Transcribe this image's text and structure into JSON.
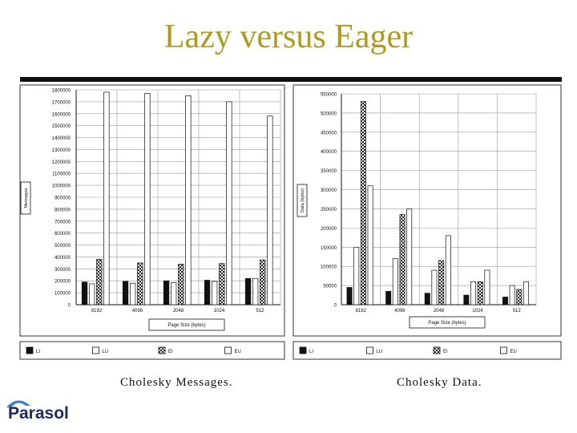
{
  "slide": {
    "title": "Lazy versus Eager",
    "caption_left": "Cholesky Messages.",
    "caption_right": "Cholesky Data.",
    "logo_text": "Parasol"
  },
  "colors": {
    "title": "#b09a1a",
    "LI": "#111111",
    "LU": "#ffffff",
    "EI": "#444444",
    "EU": "#ffffff",
    "logo": "#1e2a60"
  },
  "chart_data": [
    {
      "type": "bar",
      "xlabel": "Page Size (bytes)",
      "ylabel": "Messages",
      "categories": [
        "8192",
        "4096",
        "2048",
        "1024",
        "512"
      ],
      "ylim": [
        0,
        1800000
      ],
      "yticks": [
        0,
        100000,
        200000,
        300000,
        400000,
        500000,
        600000,
        700000,
        800000,
        900000,
        1000000,
        1100000,
        1200000,
        1300000,
        1400000,
        1500000,
        1600000,
        1700000,
        1800000
      ],
      "grid": true,
      "legend": "bottom",
      "series": [
        {
          "name": "LI",
          "values": [
            190000,
            195000,
            200000,
            205000,
            220000
          ]
        },
        {
          "name": "LU",
          "values": [
            175000,
            180000,
            185000,
            195000,
            220000
          ]
        },
        {
          "name": "EI",
          "values": [
            380000,
            350000,
            340000,
            345000,
            375000
          ]
        },
        {
          "name": "EU",
          "values": [
            1780000,
            1770000,
            1750000,
            1700000,
            1580000
          ]
        }
      ]
    },
    {
      "type": "bar",
      "xlabel": "Page Size (bytes)",
      "ylabel": "Data (bytes)",
      "categories": [
        "8192",
        "4096",
        "2048",
        "1024",
        "512"
      ],
      "ylim": [
        0,
        550000
      ],
      "yticks": [
        0,
        50000,
        100000,
        150000,
        200000,
        250000,
        300000,
        350000,
        400000,
        450000,
        500000,
        550000
      ],
      "grid": true,
      "legend": "bottom",
      "series": [
        {
          "name": "LI",
          "values": [
            45000,
            35000,
            30000,
            25000,
            20000
          ]
        },
        {
          "name": "LU",
          "values": [
            150000,
            120000,
            90000,
            60000,
            50000
          ]
        },
        {
          "name": "EI",
          "values": [
            530000,
            235000,
            115000,
            60000,
            40000
          ]
        },
        {
          "name": "EU",
          "values": [
            310000,
            250000,
            180000,
            90000,
            60000
          ]
        }
      ]
    }
  ]
}
